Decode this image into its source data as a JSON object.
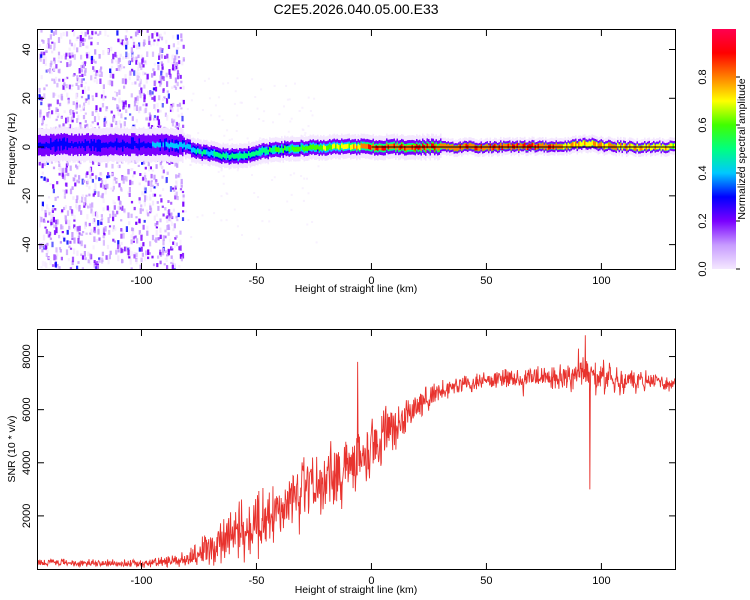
{
  "title": "C2E5.2026.040.05.00.E33",
  "colors": {
    "snr_line": "#e8332e",
    "frame": "#000000",
    "background": "#ffffff"
  },
  "chart_data": [
    {
      "type": "heatmap",
      "name": "spectrogram",
      "xlabel": "Height of straight line (km)",
      "ylabel": "Frequency (Hz)",
      "xlim": [
        -145,
        132
      ],
      "ylim": [
        -50,
        48
      ],
      "x_ticks": [
        -100,
        -50,
        0,
        50,
        100
      ],
      "y_ticks": [
        -40,
        -20,
        0,
        20,
        40
      ],
      "colorbar": {
        "label": "Normalized spectral amplitude",
        "range": [
          0,
          1
        ],
        "ticks": [
          0.0,
          0.2,
          0.4,
          0.6,
          0.8
        ],
        "tick_labels": [
          "0.0",
          "0.2",
          "0.4",
          "0.6",
          "0.8"
        ],
        "stops": [
          "#f4e8ff",
          "#c79bff",
          "#7a00ff",
          "#0000ff",
          "#00c8ff",
          "#00ff80",
          "#40ff00",
          "#ffff00",
          "#ff8000",
          "#ff0000",
          "#ff0050"
        ]
      },
      "ridge_x": [
        -145,
        -100,
        -82,
        -75,
        -65,
        -57,
        -50,
        -40,
        -30,
        -20,
        -10,
        0,
        20,
        50,
        85,
        95,
        100,
        110,
        120,
        132
      ],
      "ridge_y": [
        1,
        1,
        0.5,
        -2,
        -3.5,
        -4,
        -2,
        -1,
        -0.5,
        0,
        0,
        0,
        0,
        0,
        0.5,
        1.5,
        0.5,
        0,
        0,
        0
      ],
      "ridge_amplitude_x": [
        -145,
        -100,
        -82,
        -70,
        -55,
        -40,
        -25,
        -10,
        0,
        30,
        80,
        92,
        100,
        132
      ],
      "ridge_amplitude": [
        0.4,
        0.4,
        0.5,
        0.55,
        0.6,
        0.65,
        0.7,
        0.8,
        0.95,
        0.95,
        0.95,
        0.85,
        0.9,
        0.8
      ],
      "noise_region_x": [
        -145,
        -82
      ],
      "fit_line_y": 0
    },
    {
      "type": "line",
      "name": "snr",
      "xlabel": "Height of straight line (km)",
      "ylabel": "SNR (10 * v/v)",
      "xlim": [
        -145,
        132
      ],
      "ylim": [
        0,
        9000
      ],
      "x_ticks": [
        -100,
        -50,
        0,
        50,
        100
      ],
      "y_ticks": [
        2000,
        4000,
        6000,
        8000
      ],
      "envelope_x": [
        -145,
        -100,
        -85,
        -80,
        -75,
        -70,
        -60,
        -50,
        -40,
        -30,
        -20,
        -10,
        0,
        10,
        20,
        30,
        40,
        50,
        60,
        70,
        80,
        90,
        100,
        110,
        120,
        132
      ],
      "envelope_mean": [
        250,
        200,
        300,
        400,
        600,
        900,
        1300,
        1700,
        2200,
        2800,
        3300,
        3900,
        4600,
        5400,
        6100,
        6700,
        7000,
        7100,
        7200,
        7200,
        7200,
        7300,
        7200,
        7100,
        7100,
        7000
      ],
      "envelope_noise": [
        150,
        150,
        200,
        300,
        500,
        800,
        1000,
        1200,
        1300,
        1300,
        1300,
        1300,
        1100,
        900,
        600,
        400,
        350,
        350,
        400,
        400,
        450,
        700,
        700,
        500,
        350,
        300
      ],
      "spikes": [
        {
          "x": -6,
          "y": 7800
        },
        {
          "x": 93,
          "y": 8800
        },
        {
          "x": 95,
          "y": 3000
        },
        {
          "x": 90,
          "y": 8300
        },
        {
          "x": 66,
          "y": 6500
        }
      ]
    }
  ]
}
